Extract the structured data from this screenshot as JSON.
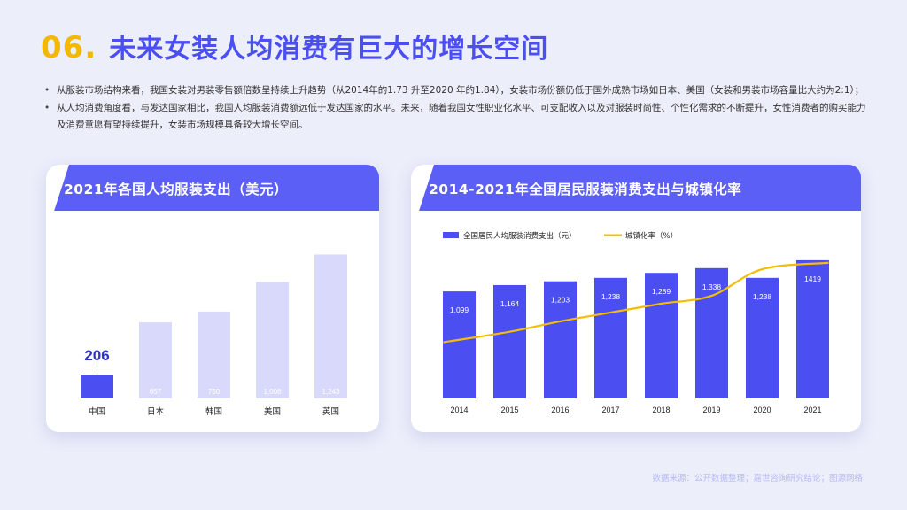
{
  "header": {
    "number": "06.",
    "title": "未来女装人均消费有巨大的增长空间"
  },
  "bullets": [
    "从服装市场结构来看，我国女装对男装零售额倍数呈持续上升趋势（从2014年的1.73  升至2020  年的1.84），女装市场份额仍低于国外成熟市场如日本、美国（女装和男装市场容量比大约为2:1）；",
    "从人均消费角度看，与发达国家相比，我国人均服装消费额远低于发达国家的水平。未来，随着我国女性职业化水平、可支配收入以及对服装时尚性、个性化需求的不断提升，女性消费者的购买能力及消费意愿有望持续提升，女装市场规模具备较大增长空间。"
  ],
  "source": "数据来源：公开数据整理；嘉世咨询研究结论；图源网络",
  "colors": {
    "title_number": "#f5b800",
    "title_text": "#4b4ff2",
    "header_bar": "#5b5ff5",
    "bar_primary": "#4b4ff2",
    "bar_light": "#d9dafb",
    "line": "#f5bd00"
  },
  "chart_data": [
    {
      "type": "bar",
      "title": "2021年各国人均服装支出（美元）",
      "categories": [
        "中国",
        "日本",
        "韩国",
        "美国",
        "英国"
      ],
      "values": [
        206,
        657,
        750,
        1006,
        1243
      ],
      "value_labels": [
        "206",
        "657",
        "750",
        "1,006",
        "1,243"
      ],
      "highlight_index": 0,
      "ylim": [
        0,
        1300
      ]
    },
    {
      "type": "bar+line",
      "title": "2014-2021年全国居民服装消费支出与城镇化率",
      "categories": [
        "2014",
        "2015",
        "2016",
        "2017",
        "2018",
        "2019",
        "2020",
        "2021"
      ],
      "series": [
        {
          "name": "全国居民人均服装消费支出（元）",
          "type": "bar",
          "values": [
            1099,
            1164,
            1203,
            1238,
            1289,
            1338,
            1238,
            1419
          ],
          "value_labels": [
            "1,099",
            "1,164",
            "1,203",
            "1,238",
            "1,289",
            "1,338",
            "1,238",
            "1419"
          ]
        },
        {
          "name": "城镇化率（%）",
          "type": "line",
          "values": [
            54.8,
            56.1,
            57.4,
            58.5,
            59.6,
            60.6,
            63.9,
            64.7
          ]
        }
      ],
      "bar_ylim": [
        0,
        1500
      ],
      "line_ylim": [
        50,
        66
      ],
      "legend": "top-left"
    }
  ]
}
